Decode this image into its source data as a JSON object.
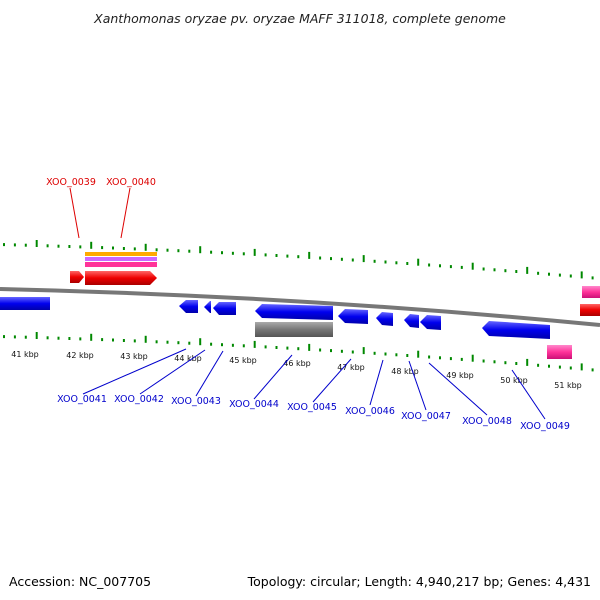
{
  "title": "Xanthomonas oryzae pv. oryzae MAFF 311018, complete genome",
  "footer": {
    "accession": "Accession: NC_007705",
    "summary": "Topology: circular; Length: 4,940,217 bp; Genes: 4,431"
  },
  "scale_labels": [
    "41 kbp",
    "42 kbp",
    "43 kbp",
    "44 kbp",
    "45 kbp",
    "46 kbp",
    "47 kbp",
    "48 kbp",
    "49 kbp",
    "50 kbp",
    "51 kbp"
  ],
  "genes_top": [
    "XOO_0039",
    "XOO_0040"
  ],
  "genes_bottom": [
    "XOO_0041",
    "XOO_0042",
    "XOO_0043",
    "XOO_0044",
    "XOO_0045",
    "XOO_0046",
    "XOO_0047",
    "XOO_0048",
    "XOO_0049"
  ],
  "colors": {
    "top_label": "#dd0000",
    "bottom_label": "#0000cc",
    "forward_gene": "#ff0000",
    "reverse_gene": "#0000ee",
    "pseudo_gene": "#777777",
    "rna_gene": "#ff3399",
    "tick": "#008800",
    "backbone": "#888888"
  }
}
